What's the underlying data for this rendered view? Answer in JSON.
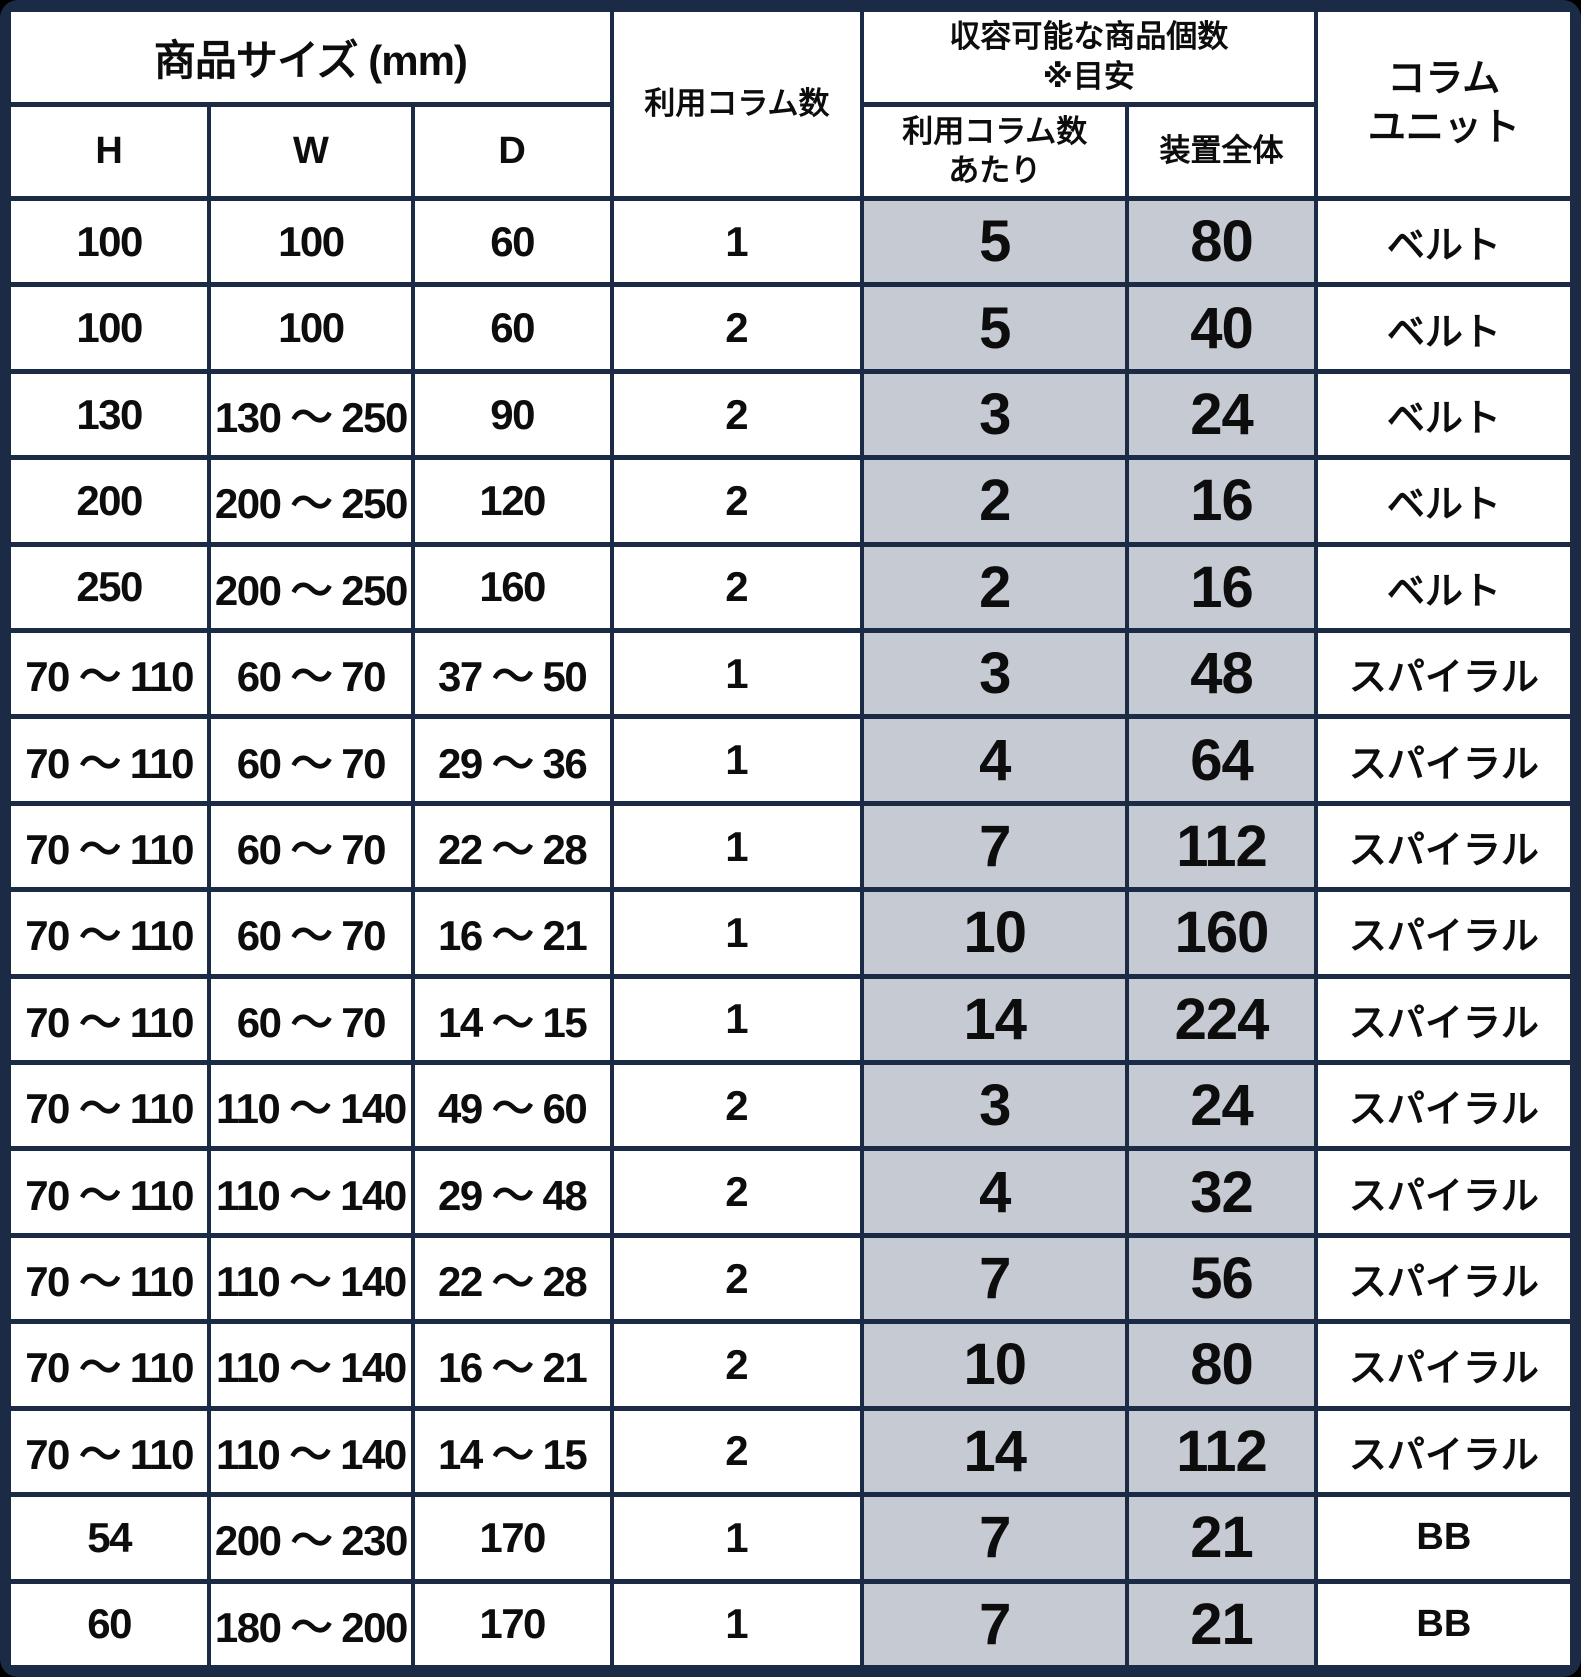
{
  "colors": {
    "border_navy": "#1b2a45",
    "highlight_gray": "#c6cad3",
    "cell_white": "#ffffff",
    "text_black": "#0d0d0d"
  },
  "table": {
    "header": {
      "product_size": "商品サイズ (mm)",
      "h": "H",
      "w": "W",
      "d": "D",
      "columns_used": "利用コラム数",
      "capacity_line1": "収容可能な商品個数",
      "capacity_line2": "※目安",
      "per_column_line1": "利用コラム数",
      "per_column_line2": "あたり",
      "device_total": "装置全体",
      "column_unit_line1": "コラム",
      "column_unit_line2": "ユニット"
    },
    "rows": [
      {
        "h": "100",
        "w": "100",
        "d": "60",
        "columns": "1",
        "per_column": "5",
        "device_total": "80",
        "unit": "ベルト"
      },
      {
        "h": "100",
        "w": "100",
        "d": "60",
        "columns": "2",
        "per_column": "5",
        "device_total": "40",
        "unit": "ベルト"
      },
      {
        "h": "130",
        "w": "130 〜 250",
        "d": "90",
        "columns": "2",
        "per_column": "3",
        "device_total": "24",
        "unit": "ベルト"
      },
      {
        "h": "200",
        "w": "200 〜 250",
        "d": "120",
        "columns": "2",
        "per_column": "2",
        "device_total": "16",
        "unit": "ベルト"
      },
      {
        "h": "250",
        "w": "200 〜 250",
        "d": "160",
        "columns": "2",
        "per_column": "2",
        "device_total": "16",
        "unit": "ベルト"
      },
      {
        "h": "70 〜 110",
        "w": "60 〜 70",
        "d": "37 〜 50",
        "columns": "1",
        "per_column": "3",
        "device_total": "48",
        "unit": "スパイラル"
      },
      {
        "h": "70 〜 110",
        "w": "60 〜 70",
        "d": "29 〜 36",
        "columns": "1",
        "per_column": "4",
        "device_total": "64",
        "unit": "スパイラル"
      },
      {
        "h": "70 〜 110",
        "w": "60 〜 70",
        "d": "22 〜 28",
        "columns": "1",
        "per_column": "7",
        "device_total": "112",
        "unit": "スパイラル"
      },
      {
        "h": "70 〜 110",
        "w": "60 〜 70",
        "d": "16 〜 21",
        "columns": "1",
        "per_column": "10",
        "device_total": "160",
        "unit": "スパイラル"
      },
      {
        "h": "70 〜 110",
        "w": "60 〜 70",
        "d": "14 〜 15",
        "columns": "1",
        "per_column": "14",
        "device_total": "224",
        "unit": "スパイラル"
      },
      {
        "h": "70 〜 110",
        "w": "110 〜 140",
        "d": "49 〜 60",
        "columns": "2",
        "per_column": "3",
        "device_total": "24",
        "unit": "スパイラル"
      },
      {
        "h": "70 〜 110",
        "w": "110 〜 140",
        "d": "29 〜 48",
        "columns": "2",
        "per_column": "4",
        "device_total": "32",
        "unit": "スパイラル"
      },
      {
        "h": "70 〜 110",
        "w": "110 〜 140",
        "d": "22 〜 28",
        "columns": "2",
        "per_column": "7",
        "device_total": "56",
        "unit": "スパイラル"
      },
      {
        "h": "70 〜 110",
        "w": "110 〜 140",
        "d": "16 〜 21",
        "columns": "2",
        "per_column": "10",
        "device_total": "80",
        "unit": "スパイラル"
      },
      {
        "h": "70 〜 110",
        "w": "110 〜 140",
        "d": "14 〜 15",
        "columns": "2",
        "per_column": "14",
        "device_total": "112",
        "unit": "スパイラル"
      },
      {
        "h": "54",
        "w": "200 〜 230",
        "d": "170",
        "columns": "1",
        "per_column": "7",
        "device_total": "21",
        "unit": "BB"
      },
      {
        "h": "60",
        "w": "180 〜 200",
        "d": "170",
        "columns": "1",
        "per_column": "7",
        "device_total": "21",
        "unit": "BB"
      }
    ]
  }
}
